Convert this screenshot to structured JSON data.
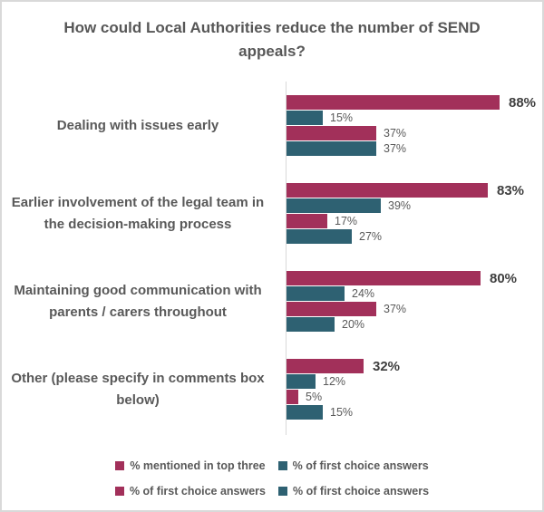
{
  "chart_data": {
    "type": "bar",
    "orientation": "horizontal",
    "title": "How could Local Authorities reduce the number of SEND appeals?",
    "categories": [
      "Dealing with issues early",
      "Earlier involvement of the legal team in the decision-making process",
      "Maintaining good communication with parents / carers throughout",
      "Other (please specify in comments box below)"
    ],
    "series": [
      {
        "name": "% mentioned in top three",
        "color": "#a2305a",
        "values": [
          88,
          83,
          80,
          32
        ]
      },
      {
        "name": "% of first choice answers",
        "color": "#2e6172",
        "values": [
          15,
          39,
          24,
          12
        ]
      },
      {
        "name": "% of first choice answers",
        "color": "#a2305a",
        "values": [
          37,
          17,
          37,
          5
        ]
      },
      {
        "name": "% of first choice answers",
        "color": "#2e6172",
        "values": [
          37,
          27,
          20,
          15
        ]
      }
    ],
    "value_suffix": "%",
    "xlim": [
      0,
      100
    ],
    "grid": false,
    "legend": {
      "position": "bottom",
      "entries": [
        {
          "label": "% mentioned in top three",
          "color": "#a2305a"
        },
        {
          "label": "% of first choice answers",
          "color": "#2e6172"
        },
        {
          "label": "% of first choice answers",
          "color": "#a2305a"
        },
        {
          "label": "% of first choice answers",
          "color": "#2e6172"
        }
      ]
    },
    "colors": {
      "maroon": "#a2305a",
      "teal": "#2e6172",
      "title_text": "#575757",
      "label_text": "#595959",
      "big_value_text": "#3f3f3f",
      "axis_line": "#d9d9d9"
    }
  }
}
